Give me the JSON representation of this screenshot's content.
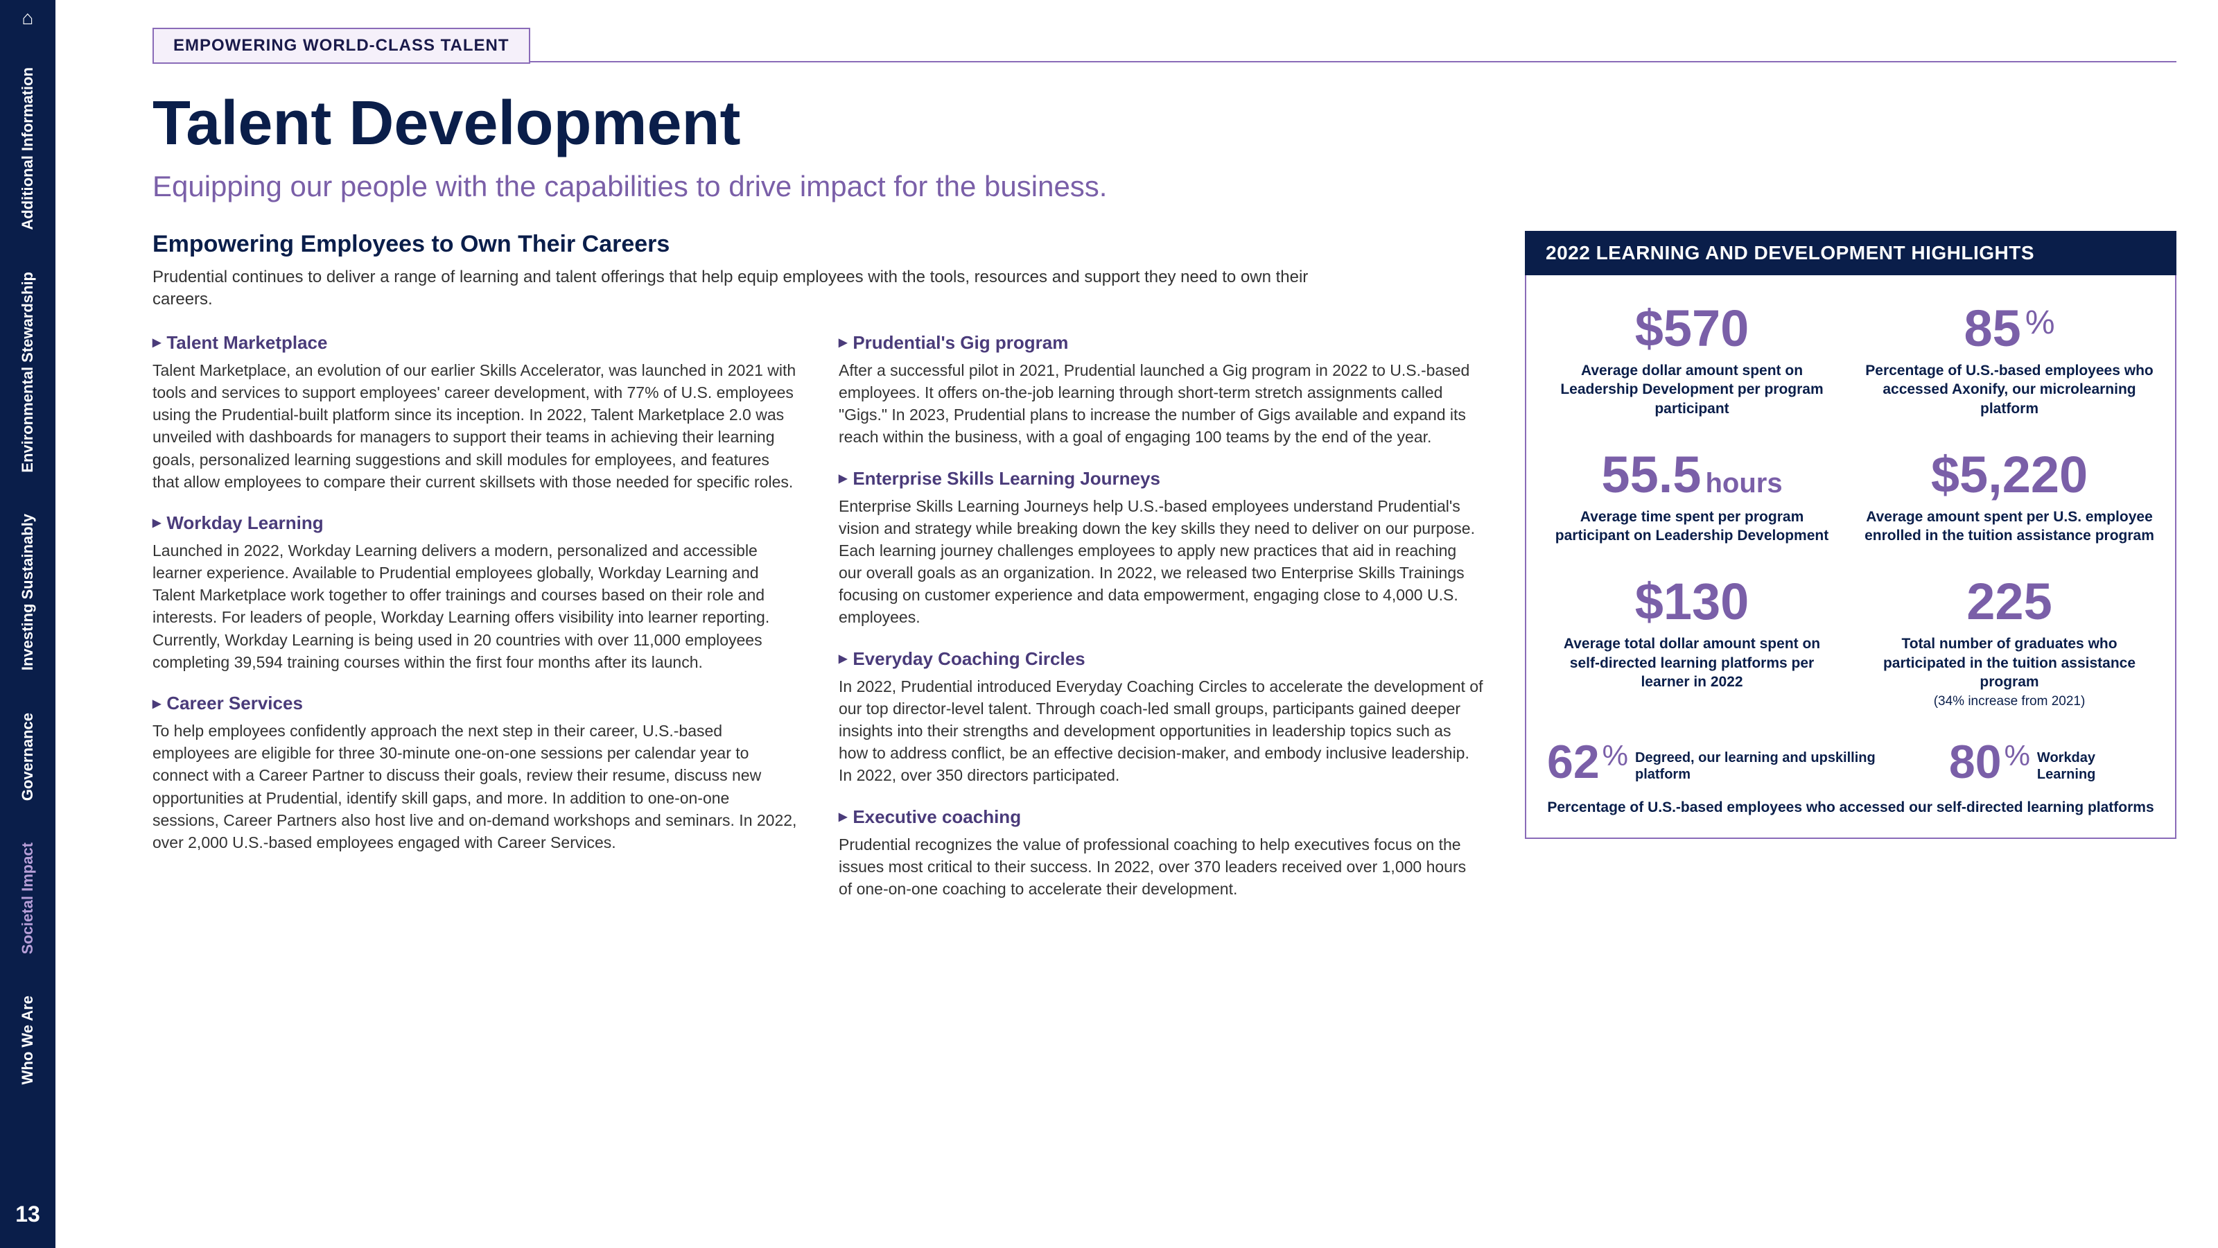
{
  "sidebar": {
    "items": [
      {
        "label": "Additional Information",
        "active": false
      },
      {
        "label": "Environmental Stewardship",
        "active": false
      },
      {
        "label": "Investing Sustainably",
        "active": false
      },
      {
        "label": "Governance",
        "active": false
      },
      {
        "label": "Societal Impact",
        "active": true
      },
      {
        "label": "Who We Are",
        "active": false
      }
    ],
    "page_number": "13"
  },
  "tag": "EMPOWERING WORLD-CLASS TALENT",
  "title": "Talent Development",
  "subtitle": "Equipping our people with the capabilities to drive impact for the business.",
  "section_heading": "Empowering Employees to Own Their Careers",
  "intro": "Prudential continues to deliver a range of learning and talent offerings that help equip employees with the tools, resources and support they need to own their careers.",
  "left_col": [
    {
      "h": "Talent Marketplace",
      "p": "Talent Marketplace, an evolution of our earlier Skills Accelerator, was launched in 2021 with tools and services to support employees' career development, with 77% of U.S. employees using the Prudential-built platform since its inception. In 2022, Talent Marketplace 2.0 was unveiled with dashboards for managers to support their teams in achieving their learning goals, personalized learning suggestions and skill modules for employees, and features that allow employees to compare their current skillsets with those needed for specific roles."
    },
    {
      "h": "Workday Learning",
      "p": "Launched in 2022, Workday Learning delivers a modern, personalized and accessible learner experience. Available to Prudential employees globally, Workday Learning and Talent Marketplace work together to offer trainings and courses based on their role and interests. For leaders of people, Workday Learning offers visibility into learner reporting. Currently, Workday Learning is being used in 20 countries with over 11,000 employees completing 39,594 training courses within the first four months after its launch."
    },
    {
      "h": "Career Services",
      "p": "To help employees confidently approach the next step in their career, U.S.-based employees are eligible for three 30-minute one-on-one sessions per calendar year to connect with a Career Partner to discuss their goals, review their resume, discuss new opportunities at Prudential, identify skill gaps, and more. In addition to one-on-one sessions, Career Partners also host live and on-demand workshops and seminars. In 2022, over 2,000 U.S.-based employees engaged with Career Services."
    }
  ],
  "right_col": [
    {
      "h": "Prudential's Gig program",
      "p": "After a successful pilot in 2021, Prudential launched a Gig program in 2022 to U.S.-based employees. It offers on-the-job learning through short-term stretch assignments called \"Gigs.\" In 2023, Prudential plans to increase the number of Gigs available and expand its reach within the business, with a goal of engaging 100 teams by the end of the year."
    },
    {
      "h": "Enterprise Skills Learning Journeys",
      "p": "Enterprise Skills Learning Journeys help U.S.-based employees understand Prudential's vision and strategy while breaking down the key skills they need to deliver on our purpose. Each learning journey challenges employees to apply new practices that aid in reaching our overall goals as an organization. In 2022, we released two Enterprise Skills Trainings focusing on customer experience and data empowerment, engaging close to 4,000 U.S. employees."
    },
    {
      "h": "Everyday Coaching Circles",
      "p": "In 2022, Prudential introduced Everyday Coaching Circles to accelerate the development of our top director-level talent. Through coach-led small groups, participants gained deeper insights into their strengths and development opportunities in leadership topics such as how to address conflict, be an effective decision-maker, and embody inclusive leadership. In 2022, over 350 directors participated."
    },
    {
      "h": "Executive coaching",
      "p": "Prudential recognizes the value of professional coaching to help executives focus on the issues most critical to their success. In 2022, over 370 leaders received over 1,000 hours of one-on-one coaching to accelerate their development."
    }
  ],
  "highlights": {
    "header": "2022 LEARNING AND DEVELOPMENT HIGHLIGHTS",
    "stats": [
      {
        "num": "$570",
        "unit": "",
        "label": "Average dollar amount spent on Leadership Development per program participant"
      },
      {
        "num": "85",
        "unit": "%",
        "label": "Percentage of U.S.-based employees who accessed Axonify, our microlearning platform"
      },
      {
        "num": "55.5",
        "unit": "hours",
        "label": "Average time spent per program participant on Leadership Development"
      },
      {
        "num": "$5,220",
        "unit": "",
        "label": "Average amount spent per U.S. employee enrolled in the tuition assistance program"
      },
      {
        "num": "$130",
        "unit": "",
        "label": "Average total dollar amount spent on self-directed learning platforms per learner in 2022"
      },
      {
        "num": "225",
        "unit": "",
        "label": "Total number of graduates who participated in the tuition assistance program",
        "sublabel": "(34% increase from 2021)"
      }
    ],
    "bottom": [
      {
        "num": "62",
        "label": "Degreed, our learning and upskilling platform"
      },
      {
        "num": "80",
        "label": "Workday Learning"
      }
    ],
    "bottom_caption": "Percentage of U.S.-based employees who accessed our self-directed learning platforms"
  },
  "colors": {
    "navy": "#0a1e4a",
    "purple": "#7a5fa8",
    "purple_border": "#8a6bb8",
    "text": "#333333"
  }
}
